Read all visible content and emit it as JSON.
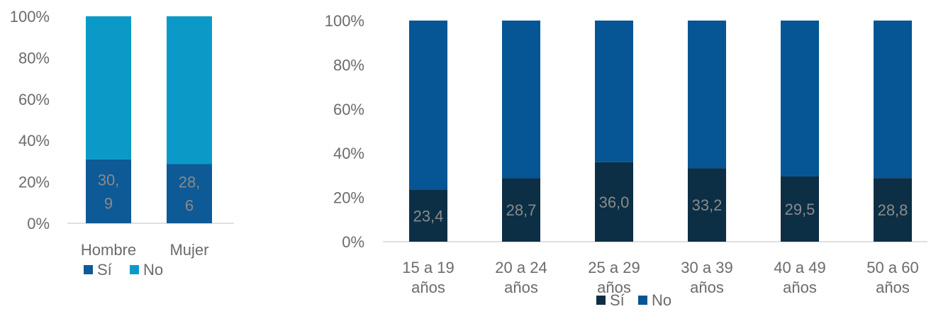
{
  "chart_data": [
    {
      "type": "bar",
      "stacked": true,
      "percent": true,
      "categories": [
        [
          "Hombre"
        ],
        [
          "Mujer"
        ]
      ],
      "ylim": [
        0,
        100
      ],
      "yticks": [
        "0%",
        "20%",
        "40%",
        "60%",
        "80%",
        "100%"
      ],
      "series": [
        {
          "name": "Sí",
          "color": "#0d5a96",
          "values": [
            30.9,
            28.6
          ],
          "labels": [
            [
              "30,",
              "9"
            ],
            [
              "28,",
              "6"
            ]
          ]
        },
        {
          "name": "No",
          "color": "#0b9ac8",
          "values": [
            69.1,
            71.4
          ]
        }
      ],
      "legend": "bottom",
      "grid": false
    },
    {
      "type": "bar",
      "stacked": true,
      "percent": true,
      "categories": [
        [
          "15 a 19",
          "años"
        ],
        [
          "20 a 24",
          "años"
        ],
        [
          "25 a 29",
          "años"
        ],
        [
          "30 a 39",
          "años"
        ],
        [
          "40 a 49",
          "años"
        ],
        [
          "50 a 60",
          "años"
        ]
      ],
      "ylim": [
        0,
        100
      ],
      "yticks": [
        "0%",
        "20%",
        "40%",
        "60%",
        "80%",
        "100%"
      ],
      "series": [
        {
          "name": "Sí",
          "color": "#0c2f45",
          "values": [
            23.4,
            28.7,
            36.0,
            33.2,
            29.5,
            28.8
          ],
          "labels": [
            [
              "23,4"
            ],
            [
              "28,7"
            ],
            [
              "36,0"
            ],
            [
              "33,2"
            ],
            [
              "29,5"
            ],
            [
              "28,8"
            ]
          ]
        },
        {
          "name": "No",
          "color": "#065595",
          "values": [
            76.6,
            71.3,
            64.0,
            66.8,
            70.5,
            71.2
          ]
        }
      ],
      "legend": "bottom",
      "grid": false
    }
  ]
}
